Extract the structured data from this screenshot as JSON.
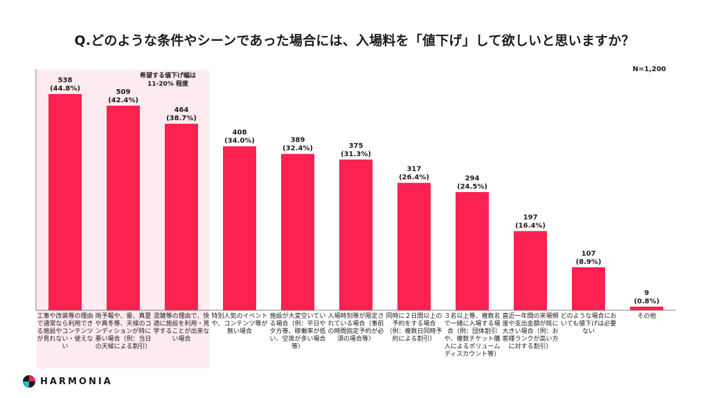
{
  "title": "Q.どのような条件やシーンであった場合には、入場料を「値下げ」して欲しいと思いますか？",
  "n_label": "N=1,200",
  "note": "希望する値下げ幅は\n11-20% 程度",
  "logo": {
    "text": "HARMONIA",
    "icon": "harmonia-logo-icon"
  },
  "colors": {
    "bar": "#fb2150",
    "highlight": "#fdebf0",
    "axis": "#555555"
  },
  "chart_data": {
    "type": "bar",
    "categories": [
      "工事や改装等の理由で通常なら利用できる施設やコンテンツが見れない・使えない",
      "雨予報や、雷、真夏や真冬等、天候のコンディションが特に悪い場合（例：当日の天候による割引）",
      "混雑等の理由で、快適に施設を利用・見学することが出来ない場合",
      "特別人気のイベントや、コンテンツ等が無い場合",
      "施設が大変空いている場合（例：平日や夕方等、稼働率が低い、空席が多い場合　等）",
      "入場時刻等が限定されている場合（事前の時間指定予約が必須の場合等）",
      "同時に２日間以上の予約をする場合（例：複数日同時予約による割引）",
      "３名以上等、複数名で一緒に入場する場合（例：団体割引や、複数チケット購入によるボリュームディスカウント等）",
      "直近一年間の来場頻度や支出金額が既に大きい場合（例：お客様ランクが高い方に対する割引）",
      "どのような場合においても値下げは必要ない",
      "その他"
    ],
    "values": [
      538,
      509,
      464,
      408,
      389,
      375,
      317,
      294,
      197,
      107,
      9
    ],
    "value_labels": [
      "538",
      "509",
      "464",
      "408",
      "389",
      "375",
      "317",
      "294",
      "197",
      "107",
      "9"
    ],
    "percent_labels": [
      "(44.8%)",
      "(42.4%)",
      "(38.7%)",
      "(34.0%)",
      "(32.4%)",
      "(31.3%)",
      "(26.4%)",
      "(24.5%)",
      "(16.4%)",
      "(8.9%)",
      "(0.8%)"
    ],
    "ylim": [
      0,
      600
    ],
    "grid": false,
    "highlighted_categories": [
      0,
      1,
      2
    ]
  }
}
